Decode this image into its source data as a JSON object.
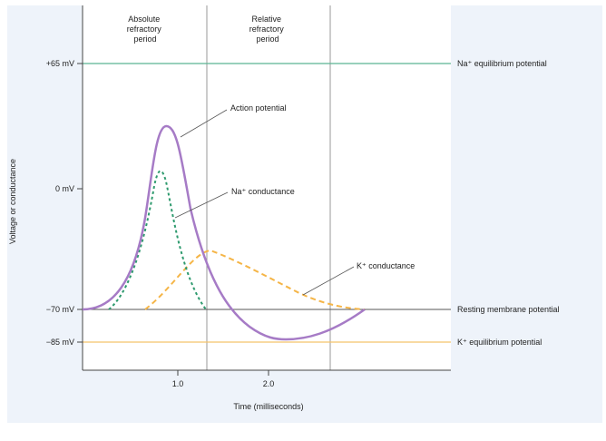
{
  "phases": {
    "absolute": [
      "Absolute",
      "refractory",
      "period"
    ],
    "relative": [
      "Relative",
      "refractory",
      "period"
    ]
  },
  "axes": {
    "ylabel": "Voltage or conductance",
    "xlabel": "Time (milliseconds)",
    "y_ticks": [
      "+65 mV",
      "0 mV",
      "−70 mV",
      "−85 mV"
    ],
    "x_ticks": [
      "1.0",
      "2.0"
    ]
  },
  "reference_lines": {
    "na_equilibrium": "Na⁺ equilibrium potential",
    "resting": "Resting membrane potential",
    "k_equilibrium": "K⁺ equilibrium potential"
  },
  "curve_labels": {
    "action_potential": "Action potential",
    "na_conductance": "Na⁺ conductance",
    "k_conductance": "K⁺ conductance"
  },
  "colors": {
    "action_potential": "#a67bc6",
    "na_conductance": "#2e9a6e",
    "k_conductance": "#f5b547",
    "na_equilibrium_line": "#5bb592",
    "k_equilibrium_line": "#f4c36b",
    "resting_line": "#555555",
    "background_panel": "#eef3fa"
  }
}
